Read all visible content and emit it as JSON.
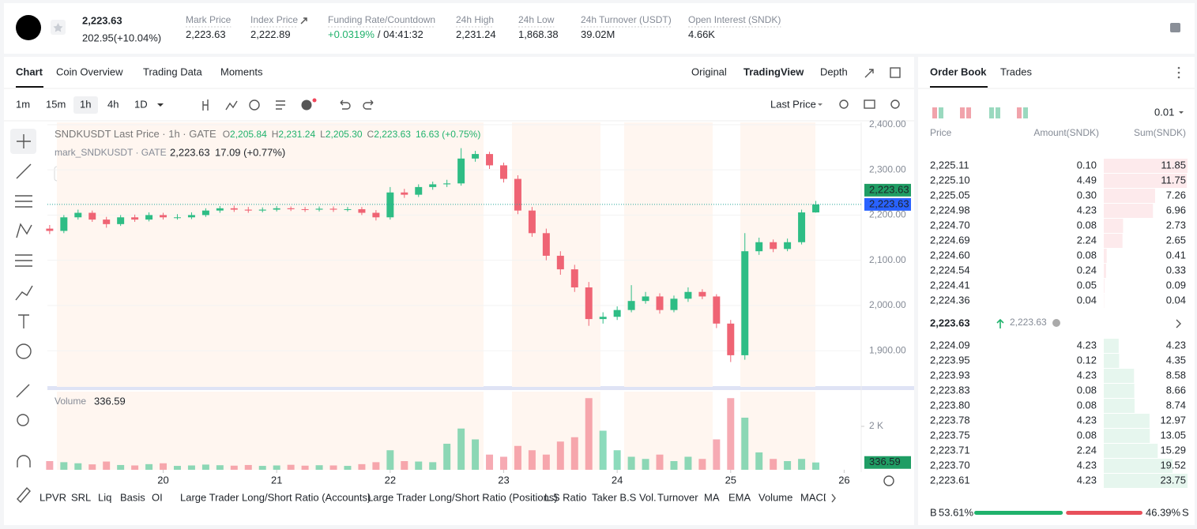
{
  "header": {
    "last_price": "2,223.63",
    "change": "202.95(+10.04%)",
    "stats": [
      {
        "label": "Mark Price",
        "value": "2,223.63"
      },
      {
        "label": "Index Price",
        "value": "2,222.89"
      },
      {
        "label": "Funding Rate/Countdown",
        "value": "+0.0319%",
        "extra": "/ 04:41:32"
      },
      {
        "label": "24h High",
        "value": "2,231.24"
      },
      {
        "label": "24h Low",
        "value": "1,868.38"
      },
      {
        "label": "24h Turnover (USDT)",
        "value": "39.02M"
      },
      {
        "label": "Open Interest (SNDK)",
        "value": "4.66K"
      }
    ]
  },
  "tabs": {
    "main": [
      "Chart",
      "Coin Overview",
      "Trading Data",
      "Moments"
    ],
    "view": [
      "Original",
      "TradingView",
      "Depth"
    ]
  },
  "toolbar": {
    "intervals": [
      "1m",
      "15m",
      "1h",
      "4h",
      "1D"
    ],
    "price_source": "Last Price"
  },
  "legend": {
    "title": "SNDKUSDT Last Price · 1h · GATE",
    "ohlc": [
      {
        "key": "O",
        "value": "2,205.84"
      },
      {
        "key": "H",
        "value": "2,231.24"
      },
      {
        "key": "L",
        "value": "2,205.30"
      },
      {
        "key": "C",
        "value": "2,223.63"
      }
    ],
    "change": "16.63 (+0.75%)",
    "mark_title": "mark_SNDKUSDT · GATE",
    "mark_price": "2,223.63",
    "mark_change": "17.09 (+0.77%)",
    "volume_label": "Volume",
    "volume_value": "336.59"
  },
  "chart_data": {
    "type": "candlestick",
    "up_color": "#2ebd85",
    "down_color": "#ef6474",
    "x": [
      19,
      19.125,
      19.25,
      19.375,
      19.5,
      19.625,
      19.75,
      19.875,
      20,
      20.125,
      20.25,
      20.375,
      20.5,
      20.625,
      20.75,
      20.875,
      21,
      21.125,
      21.25,
      21.375,
      21.5,
      21.625,
      21.75,
      21.875,
      22,
      22.125,
      22.25,
      22.375,
      22.5,
      22.625,
      22.75,
      22.875,
      23,
      23.125,
      23.25,
      23.375,
      23.5,
      23.625,
      23.75,
      23.875,
      24,
      24.125,
      24.25,
      24.375,
      24.5,
      24.625,
      24.75,
      24.875,
      25,
      25.125,
      25.25,
      25.375,
      25.5,
      25.625,
      25.75
    ],
    "open": [
      2170,
      2165,
      2195,
      2205,
      2190,
      2180,
      2195,
      2190,
      2200,
      2195,
      2195,
      2200,
      2210,
      2215,
      2212,
      2210,
      2212,
      2215,
      2213,
      2212,
      2214,
      2212,
      2213,
      2205,
      2195,
      2250,
      2245,
      2262,
      2268,
      2270,
      2325,
      2335,
      2310,
      2280,
      2210,
      2160,
      2110,
      2080,
      2040,
      1970,
      1975,
      1990,
      2010,
      2020,
      1990,
      2015,
      2030,
      2020,
      1960,
      1890,
      2120,
      2140,
      2125,
      2140,
      2205.84
    ],
    "high": [
      2178,
      2200,
      2212,
      2210,
      2196,
      2200,
      2201,
      2206,
      2205,
      2202,
      2206,
      2215,
      2220,
      2221,
      2218,
      2217,
      2220,
      2219,
      2218,
      2219,
      2219,
      2218,
      2218,
      2211,
      2262,
      2258,
      2268,
      2274,
      2278,
      2348,
      2342,
      2340,
      2316,
      2288,
      2218,
      2170,
      2120,
      2090,
      2052,
      1985,
      1998,
      2045,
      2030,
      2027,
      2022,
      2040,
      2036,
      2025,
      1968,
      2160,
      2150,
      2146,
      2148,
      2212,
      2231.24
    ],
    "low": [
      2158,
      2160,
      2190,
      2185,
      2172,
      2176,
      2185,
      2186,
      2190,
      2190,
      2191,
      2196,
      2205,
      2207,
      2205,
      2206,
      2208,
      2209,
      2207,
      2208,
      2207,
      2208,
      2200,
      2188,
      2190,
      2238,
      2240,
      2256,
      2262,
      2265,
      2318,
      2302,
      2272,
      2202,
      2152,
      2100,
      2068,
      2030,
      1955,
      1960,
      1968,
      1985,
      2004,
      1982,
      1985,
      2008,
      2014,
      1950,
      1875,
      1880,
      2112,
      2118,
      2120,
      2135,
      2205.3
    ],
    "close": [
      2165,
      2195,
      2205,
      2190,
      2180,
      2195,
      2190,
      2200,
      2195,
      2195,
      2200,
      2210,
      2215,
      2212,
      2210,
      2212,
      2215,
      2213,
      2212,
      2214,
      2212,
      2213,
      2205,
      2195,
      2250,
      2245,
      2262,
      2268,
      2270,
      2325,
      2335,
      2310,
      2280,
      2210,
      2160,
      2110,
      2080,
      2040,
      1970,
      1975,
      1990,
      2010,
      2020,
      1990,
      2015,
      2030,
      2020,
      1960,
      1890,
      2120,
      2140,
      2125,
      2140,
      2205.84,
      2223.63
    ],
    "volume": [
      400,
      350,
      300,
      250,
      380,
      220,
      200,
      260,
      300,
      180,
      200,
      240,
      210,
      190,
      220,
      180,
      200,
      230,
      190,
      210,
      200,
      180,
      260,
      350,
      900,
      400,
      380,
      350,
      1200,
      1900,
      1400,
      700,
      600,
      1100,
      900,
      700,
      1300,
      1500,
      3300,
      1800,
      900,
      600,
      500,
      700,
      400,
      600,
      500,
      1400,
      3300,
      2400,
      800,
      500,
      400,
      500,
      336.59
    ],
    "ylim": [
      1820,
      2405
    ],
    "yticks": [
      {
        "value": 1900,
        "label": "1,900.00"
      },
      {
        "value": 2000,
        "label": "2,000.00"
      },
      {
        "value": 2100,
        "label": "2,100.00"
      },
      {
        "value": 2200,
        "label": "2,200.00"
      },
      {
        "value": 2300,
        "label": "2,300.00"
      },
      {
        "value": 2400,
        "label": "2,400.00"
      }
    ],
    "xlim": [
      18.98,
      26.15
    ],
    "xticks": [
      20,
      21,
      22,
      23,
      24,
      25,
      26
    ],
    "volume_ylim": [
      0,
      3600
    ],
    "volume_yticks": [
      {
        "value": 2000,
        "label": "2 K"
      }
    ]
  },
  "indicators": [
    "LPVR",
    "SRL",
    "Liq",
    "Basis",
    "OI",
    "Large Trader Long/Short Ratio (Accounts)",
    "Large Trader Long/Short Ratio (Positions)",
    "L.S Ratio",
    "Taker B.S Vol.",
    "Turnover",
    "MA",
    "EMA",
    "Volume",
    "MACD"
  ],
  "order_book": {
    "tabs": [
      "Order Book",
      "Trades"
    ],
    "precision": "0.01",
    "columns": [
      "Price",
      "Amount(SNDK)",
      "Sum(SNDK)"
    ],
    "asks": [
      [
        "2,225.11",
        "0.10",
        "11.85"
      ],
      [
        "2,225.10",
        "4.49",
        "11.75"
      ],
      [
        "2,225.05",
        "0.30",
        "7.26"
      ],
      [
        "2,224.98",
        "4.23",
        "6.96"
      ],
      [
        "2,224.70",
        "0.08",
        "2.73"
      ],
      [
        "2,224.69",
        "2.24",
        "2.65"
      ],
      [
        "2,224.60",
        "0.08",
        "0.41"
      ],
      [
        "2,224.54",
        "0.24",
        "0.33"
      ],
      [
        "2,224.41",
        "0.05",
        "0.09"
      ],
      [
        "2,224.36",
        "0.04",
        "0.04"
      ]
    ],
    "last_price": "2,223.63",
    "mark_price": "2,223.63",
    "bids": [
      [
        "2,224.09",
        "4.23",
        "4.23"
      ],
      [
        "2,223.95",
        "0.12",
        "4.35"
      ],
      [
        "2,223.93",
        "4.23",
        "8.58"
      ],
      [
        "2,223.83",
        "0.08",
        "8.66"
      ],
      [
        "2,223.80",
        "0.08",
        "8.74"
      ],
      [
        "2,223.78",
        "4.23",
        "12.97"
      ],
      [
        "2,223.75",
        "0.08",
        "13.05"
      ],
      [
        "2,223.71",
        "2.24",
        "15.29"
      ],
      [
        "2,223.70",
        "4.23",
        "19.52"
      ],
      [
        "2,223.61",
        "4.23",
        "23.75"
      ]
    ],
    "buy_label": "B",
    "buy_ratio": "53.61%",
    "sell_ratio": "46.39%",
    "sell_label": "S"
  }
}
